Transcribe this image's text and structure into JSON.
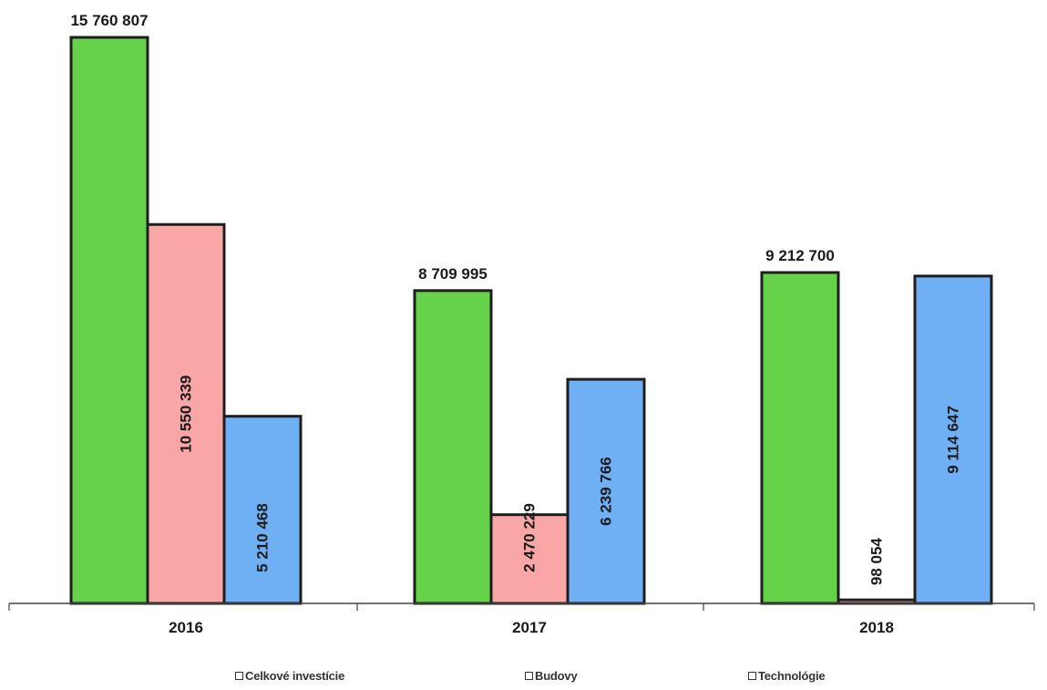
{
  "chart_data": {
    "type": "bar",
    "categories": [
      "2016",
      "2017",
      "2018"
    ],
    "series": [
      {
        "name": "Celkové investície",
        "color": "#66d24a",
        "values": [
          15760807,
          8709995,
          9212700
        ],
        "labels": [
          "15 760 807",
          "8 709 995",
          "9 212 700"
        ]
      },
      {
        "name": "Budovy",
        "color": "#f9a6a6",
        "values": [
          10550339,
          2470229,
          98054
        ],
        "labels": [
          "10 550 339",
          "2 470 229",
          "98 054"
        ]
      },
      {
        "name": "Technológie",
        "color": "#6fb0f5",
        "values": [
          5210468,
          6239766,
          9114647
        ],
        "labels": [
          "5 210 468",
          "6 239 766",
          "9 114 647"
        ]
      }
    ],
    "title": "",
    "xlabel": "",
    "ylabel": "",
    "ylim": [
      0,
      15760807
    ],
    "grid": false,
    "legend_position": "bottom"
  }
}
